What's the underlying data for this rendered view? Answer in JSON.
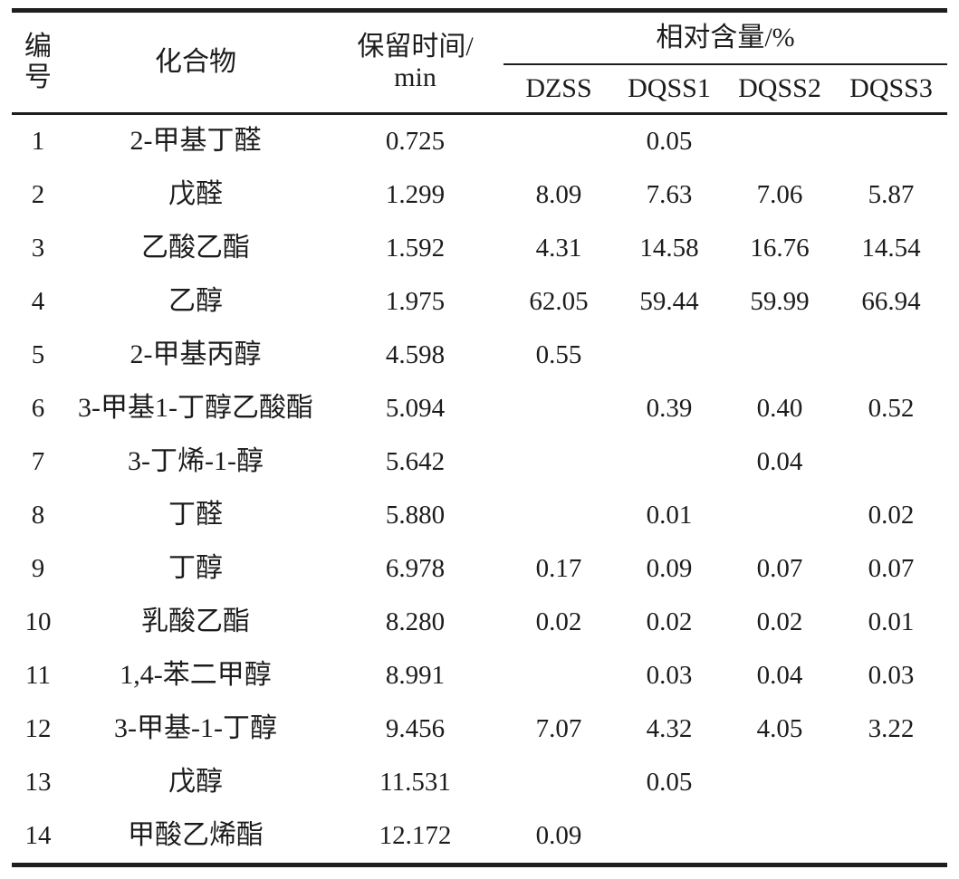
{
  "table": {
    "header": {
      "number_line1": "编",
      "number_line2": "号",
      "compound": "化合物",
      "retention_line1": "保留时间/",
      "retention_line2": "min",
      "relative_content": "相对含量/%",
      "samples": [
        "DZSS",
        "DQSS1",
        "DQSS2",
        "DQSS3"
      ]
    },
    "rows": [
      {
        "no": "1",
        "compound": "2-甲基丁醛",
        "retention": "0.725",
        "values": [
          "",
          "0.05",
          "",
          ""
        ]
      },
      {
        "no": "2",
        "compound": "戊醛",
        "retention": "1.299",
        "values": [
          "8.09",
          "7.63",
          "7.06",
          "5.87"
        ]
      },
      {
        "no": "3",
        "compound": "乙酸乙酯",
        "retention": "1.592",
        "values": [
          "4.31",
          "14.58",
          "16.76",
          "14.54"
        ]
      },
      {
        "no": "4",
        "compound": "乙醇",
        "retention": "1.975",
        "values": [
          "62.05",
          "59.44",
          "59.99",
          "66.94"
        ]
      },
      {
        "no": "5",
        "compound": "2-甲基丙醇",
        "retention": "4.598",
        "values": [
          "0.55",
          "",
          "",
          ""
        ]
      },
      {
        "no": "6",
        "compound": "3-甲基1-丁醇乙酸酯",
        "retention": "5.094",
        "values": [
          "",
          "0.39",
          "0.40",
          "0.52"
        ]
      },
      {
        "no": "7",
        "compound": "3-丁烯-1-醇",
        "retention": "5.642",
        "values": [
          "",
          "",
          "0.04",
          ""
        ]
      },
      {
        "no": "8",
        "compound": "丁醛",
        "retention": "5.880",
        "values": [
          "",
          "0.01",
          "",
          "0.02"
        ]
      },
      {
        "no": "9",
        "compound": "丁醇",
        "retention": "6.978",
        "values": [
          "0.17",
          "0.09",
          "0.07",
          "0.07"
        ]
      },
      {
        "no": "10",
        "compound": "乳酸乙酯",
        "retention": "8.280",
        "values": [
          "0.02",
          "0.02",
          "0.02",
          "0.01"
        ]
      },
      {
        "no": "11",
        "compound": "1,4-苯二甲醇",
        "retention": "8.991",
        "values": [
          "",
          "0.03",
          "0.04",
          "0.03"
        ]
      },
      {
        "no": "12",
        "compound": "3-甲基-1-丁醇",
        "retention": "9.456",
        "values": [
          "7.07",
          "4.32",
          "4.05",
          "3.22"
        ]
      },
      {
        "no": "13",
        "compound": "戊醇",
        "retention": "11.531",
        "values": [
          "",
          "0.05",
          "",
          ""
        ]
      },
      {
        "no": "14",
        "compound": "甲酸乙烯酯",
        "retention": "12.172",
        "values": [
          "0.09",
          "",
          "",
          ""
        ]
      }
    ]
  },
  "colors": {
    "text": "#1c1c1c",
    "rule": "#1e1e1e",
    "background": "#ffffff"
  }
}
